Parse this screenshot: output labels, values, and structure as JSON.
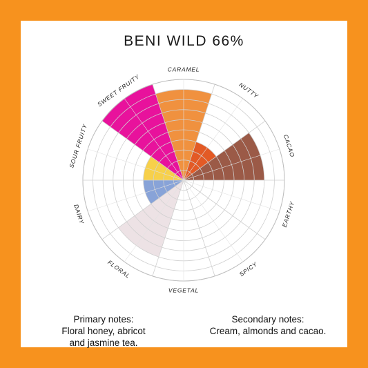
{
  "chart_data": {
    "type": "radial",
    "title": "BENI WILD 66%",
    "scale_max": 10,
    "categories": [
      "CARAMEL",
      "NUTTY",
      "CACAO",
      "EARTHY",
      "SPICY",
      "VEGETAL",
      "FLORAL",
      "DAIRY",
      "SOUR FRUITY",
      "SWEET FRUITY"
    ],
    "segments": [
      {
        "label": "SWEET FRUITY",
        "value": 10,
        "color": "#e8129c"
      },
      {
        "label": "CARAMEL",
        "value": 9,
        "color": "#f0913f"
      },
      {
        "label": "NUTTY",
        "value": 4,
        "color": "#e35a25"
      },
      {
        "label": "CACAO",
        "value": 8,
        "color": "#9b5a47"
      },
      {
        "label": "FLORAL",
        "value": 8,
        "color": "#ede2e5"
      },
      {
        "label": "SOUR FRUITY",
        "value": 4,
        "color": "#f7d04a"
      },
      {
        "label": "SOUR FRUITY (lower)",
        "value": 4,
        "color": "#88a3d8"
      }
    ]
  },
  "notes": {
    "primary": {
      "heading": "Primary notes:",
      "lines": [
        "Floral honey, abricot",
        "and jasmine tea."
      ]
    },
    "secondary": {
      "heading": "Secondary notes:",
      "lines": [
        "Cream, almonds and cacao."
      ]
    }
  }
}
